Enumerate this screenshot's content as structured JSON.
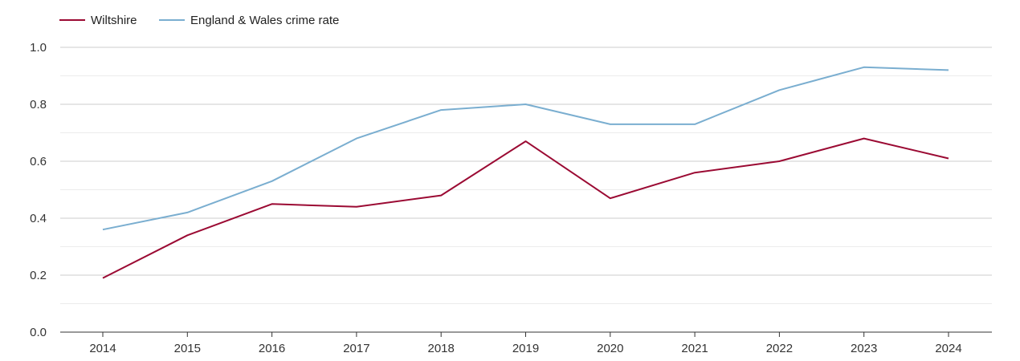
{
  "chart_data": {
    "type": "line",
    "title": "",
    "xlabel": "",
    "ylabel": "",
    "x": [
      "2014",
      "2015",
      "2016",
      "2017",
      "2018",
      "2019",
      "2020",
      "2021",
      "2022",
      "2023",
      "2024"
    ],
    "ylim": [
      0,
      1.0
    ],
    "yticks": [
      "0.0",
      "0.2",
      "0.4",
      "0.6",
      "0.8",
      "1.0"
    ],
    "grid": true,
    "legend_position": "top-left",
    "series": [
      {
        "name": "Wiltshire",
        "color": "#9b0a33",
        "values": [
          0.19,
          0.34,
          0.45,
          0.44,
          0.48,
          0.67,
          0.47,
          0.56,
          0.6,
          0.68,
          0.61
        ]
      },
      {
        "name": "England & Wales crime rate",
        "color": "#7aaed0",
        "values": [
          0.36,
          0.42,
          0.53,
          0.68,
          0.78,
          0.8,
          0.73,
          0.73,
          0.85,
          0.93,
          0.92
        ]
      }
    ]
  }
}
